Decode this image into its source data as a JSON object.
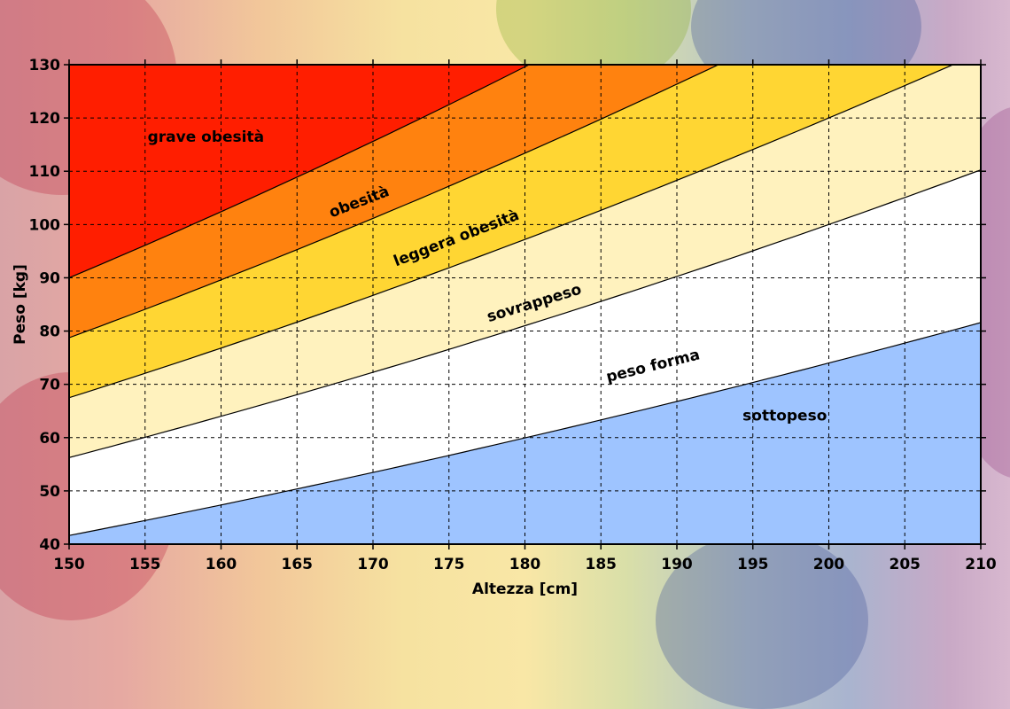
{
  "chart_data": {
    "type": "area",
    "xlabel": "Altezza [cm]",
    "ylabel": "Peso [kg]",
    "xlim": [
      150,
      210
    ],
    "ylim": [
      40,
      130
    ],
    "x_ticks": [
      150,
      155,
      160,
      165,
      170,
      175,
      180,
      185,
      190,
      195,
      200,
      205,
      210
    ],
    "y_ticks": [
      40,
      50,
      60,
      70,
      80,
      90,
      100,
      110,
      120,
      130
    ],
    "grid": true,
    "bmi_boundaries": [
      18.5,
      25,
      30,
      35,
      40
    ],
    "zones": [
      {
        "name": "sottopeso",
        "bmi_min": 0,
        "bmi_max": 18.5,
        "color": "#9ec4ff"
      },
      {
        "name": "peso forma",
        "bmi_min": 18.5,
        "bmi_max": 25,
        "color": "#ffffff"
      },
      {
        "name": "sovrappeso",
        "bmi_min": 25,
        "bmi_max": 30,
        "color": "#fff2be"
      },
      {
        "name": "leggera obesità",
        "bmi_min": 30,
        "bmi_max": 35,
        "color": "#ffd633"
      },
      {
        "name": "obesità",
        "bmi_min": 35,
        "bmi_max": 40,
        "color": "#ff820f"
      },
      {
        "name": "grave obesità",
        "bmi_min": 40,
        "bmi_max": null,
        "color": "#ff1e00"
      }
    ],
    "labels": [
      {
        "text": "grave obesità",
        "x": 159,
        "y": 115.5,
        "rotate": 0
      },
      {
        "text": "obesità",
        "x": 169.2,
        "y": 103.4,
        "rotate": -21
      },
      {
        "text": "leggera obesità",
        "x": 175.6,
        "y": 96.6,
        "rotate": -21
      },
      {
        "text": "sovrappeso",
        "x": 180.7,
        "y": 84.4,
        "rotate": -17
      },
      {
        "text": "peso forma",
        "x": 188.5,
        "y": 72.6,
        "rotate": -14
      },
      {
        "text": "sottopeso",
        "x": 197.1,
        "y": 63.2,
        "rotate": 0
      }
    ]
  }
}
